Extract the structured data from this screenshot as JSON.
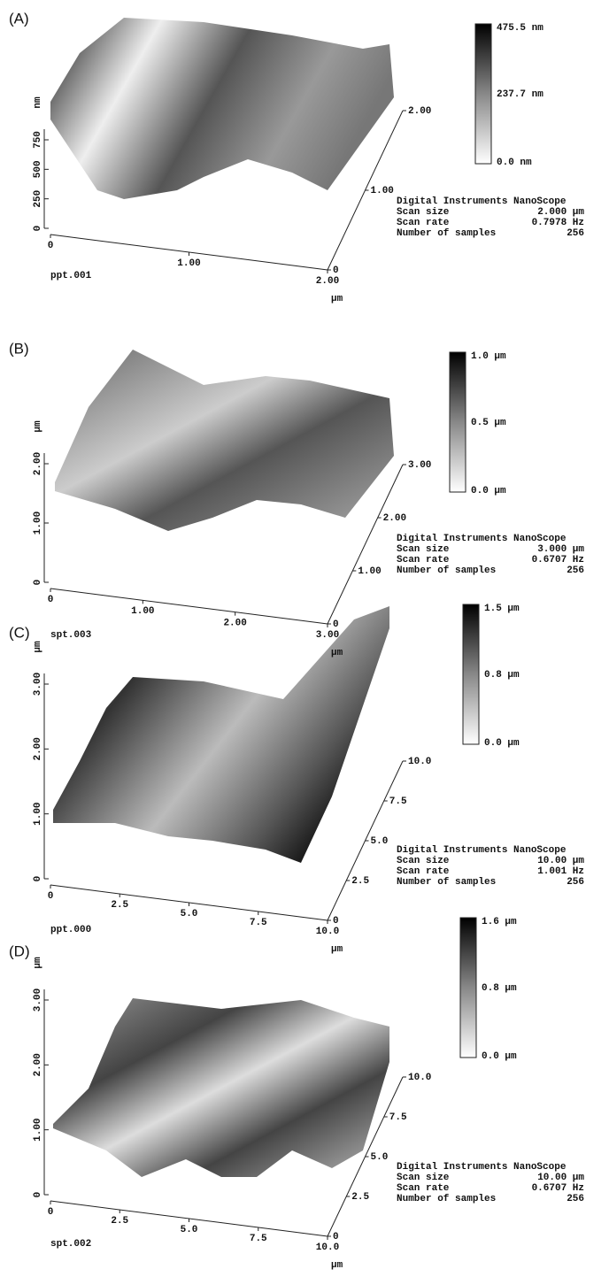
{
  "panels": [
    {
      "label": "(A)",
      "filename": "ppt.001",
      "z_unit": "nm",
      "z_ticks": [
        "0",
        "250",
        "500",
        "750"
      ],
      "x_ticks": [
        "0",
        "1.00",
        "2.00"
      ],
      "x_unit": "µm",
      "y_ticks": [
        "0",
        "1.00",
        "2.00"
      ],
      "colorbar": [
        "475.5 nm",
        "237.7 nm",
        "0.0 nm"
      ],
      "info": {
        "header": "Digital Instruments NanoScope",
        "rows": [
          [
            "Scan size",
            "2.000 µm"
          ],
          [
            "Scan rate",
            "0.7978 Hz"
          ],
          [
            "Number of samples",
            "256"
          ]
        ]
      }
    },
    {
      "label": "(B)",
      "filename": "spt.003",
      "z_unit": "µm",
      "z_ticks": [
        "0",
        "1.00",
        "2.00"
      ],
      "x_ticks": [
        "0",
        "1.00",
        "2.00",
        "3.00"
      ],
      "x_unit": "µm",
      "y_ticks": [
        "0",
        "1.00",
        "2.00",
        "3.00"
      ],
      "colorbar": [
        "1.0 µm",
        "0.5 µm",
        "0.0 µm"
      ],
      "info": {
        "header": "Digital Instruments NanoScope",
        "rows": [
          [
            "Scan size",
            "3.000 µm"
          ],
          [
            "Scan rate",
            "0.6707 Hz"
          ],
          [
            "Number of samples",
            "256"
          ]
        ]
      }
    },
    {
      "label": "(C)",
      "filename": "ppt.000",
      "z_unit": "µm",
      "z_ticks": [
        "0",
        "1.00",
        "2.00",
        "3.00"
      ],
      "x_ticks": [
        "0",
        "2.5",
        "5.0",
        "7.5",
        "10.0"
      ],
      "x_unit": "µm",
      "y_ticks": [
        "0",
        "2.5",
        "5.0",
        "7.5",
        "10.0"
      ],
      "colorbar": [
        "1.5 µm",
        "0.8 µm",
        "0.0 µm"
      ],
      "info": {
        "header": "Digital Instruments NanoScope",
        "rows": [
          [
            "Scan size",
            "10.00 µm"
          ],
          [
            "Scan rate",
            "1.001 Hz"
          ],
          [
            "Number of samples",
            "256"
          ]
        ]
      }
    },
    {
      "label": "(D)",
      "filename": "spt.002",
      "z_unit": "µm",
      "z_ticks": [
        "0",
        "1.00",
        "2.00",
        "3.00"
      ],
      "x_ticks": [
        "0",
        "2.5",
        "5.0",
        "7.5",
        "10.0"
      ],
      "x_unit": "µm",
      "y_ticks": [
        "0",
        "2.5",
        "5.0",
        "7.5",
        "10.0"
      ],
      "colorbar": [
        "1.6 µm",
        "0.8 µm",
        "0.0 µm"
      ],
      "info": {
        "header": "Digital Instruments NanoScope",
        "rows": [
          [
            "Scan size",
            "10.00 µm"
          ],
          [
            "Scan rate",
            "0.6707 Hz"
          ],
          [
            "Number of samples",
            "256"
          ]
        ]
      }
    }
  ]
}
